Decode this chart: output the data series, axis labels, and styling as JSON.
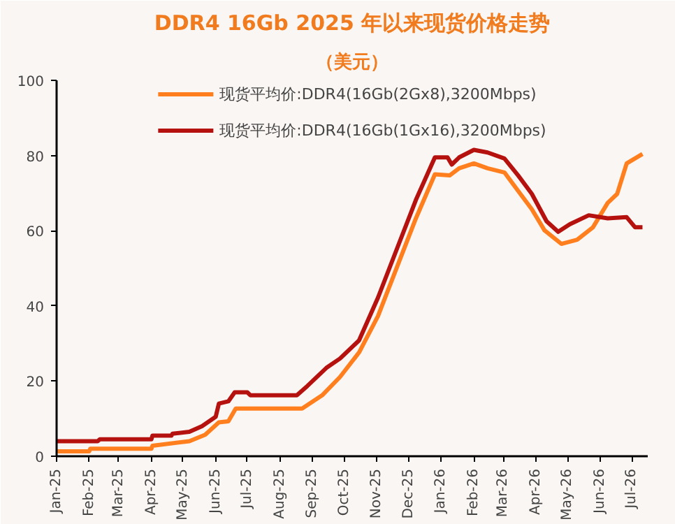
{
  "chart_data": {
    "type": "line",
    "title": "DDR4 16Gb 2025 年以来现货价格走势",
    "subtitle": "（美元）",
    "xlim": [
      "2025-01-01",
      "2026-07-16"
    ],
    "ylim": [
      0,
      100
    ],
    "yticks": [
      0,
      20,
      40,
      60,
      80,
      100
    ],
    "xticks": [
      {
        "value": "2025-01",
        "label": "Jan-25"
      },
      {
        "value": "2025-02",
        "label": "Feb-25"
      },
      {
        "value": "2025-03",
        "label": "Mar-25"
      },
      {
        "value": "2025-04",
        "label": "Apr-25"
      },
      {
        "value": "2025-05",
        "label": "May-25"
      },
      {
        "value": "2025-06",
        "label": "Jun-25"
      },
      {
        "value": "2025-07",
        "label": "Jul-25"
      },
      {
        "value": "2025-08",
        "label": "Aug-25"
      },
      {
        "value": "2025-09",
        "label": "Sep-25"
      },
      {
        "value": "2025-10",
        "label": "Oct-25"
      },
      {
        "value": "2025-11",
        "label": "Nov-25"
      },
      {
        "value": "2025-12",
        "label": "Dec-25"
      },
      {
        "value": "2026-01",
        "label": "Jan-26"
      },
      {
        "value": "2026-02",
        "label": "Feb-26"
      },
      {
        "value": "2026-03",
        "label": "Mar-26"
      },
      {
        "value": "2026-04",
        "label": "Apr-26"
      },
      {
        "value": "2026-05",
        "label": "May-26"
      },
      {
        "value": "2026-06",
        "label": "Jun-26"
      },
      {
        "value": "2026-07",
        "label": "Jul-26"
      }
    ],
    "grid": false,
    "legend": "top",
    "marker": "none",
    "line_style": "solid",
    "series": [
      {
        "name": "现货平均价:DDR4(16Gb(2Gx8),3200Mbps)",
        "color": "#ff7f1e",
        "x": [
          "2025-01-01",
          "2025-02-01",
          "2025-02-02",
          "2025-04-01",
          "2025-04-02",
          "2025-05-07",
          "2025-05-22",
          "2025-06-04",
          "2025-06-13",
          "2025-06-20",
          "2025-08-22",
          "2025-09-10",
          "2025-09-27",
          "2025-10-15",
          "2025-11-02",
          "2025-11-20",
          "2025-12-08",
          "2025-12-26",
          "2026-01-09",
          "2026-01-18",
          "2026-02-01",
          "2026-02-14",
          "2026-03-02",
          "2026-03-15",
          "2026-03-28",
          "2026-04-09",
          "2026-04-25",
          "2026-05-10",
          "2026-05-25",
          "2026-06-08",
          "2026-06-17",
          "2026-06-26",
          "2026-07-11"
        ],
        "values": [
          1.3,
          1.3,
          2,
          2,
          2.8,
          4,
          5.7,
          9,
          9.3,
          12.7,
          12.7,
          16.2,
          21.1,
          27.6,
          37.3,
          50.3,
          63.3,
          75.0,
          74.7,
          76.6,
          77.9,
          76.6,
          75.5,
          70.6,
          65.7,
          60.1,
          56.5,
          57.6,
          60.9,
          67.4,
          69.8,
          77.9,
          80.4
        ]
      },
      {
        "name": "现货平均价:DDR4(16Gb(1Gx16),3200Mbps)",
        "color": "#b5120f",
        "x": [
          "2025-01-01",
          "2025-02-09",
          "2025-02-11",
          "2025-04-01",
          "2025-04-02",
          "2025-04-20",
          "2025-04-21",
          "2025-05-07",
          "2025-05-19",
          "2025-06-01",
          "2025-06-04",
          "2025-06-13",
          "2025-06-19",
          "2025-07-01",
          "2025-07-04",
          "2025-08-17",
          "2025-08-27",
          "2025-09-14",
          "2025-09-27",
          "2025-10-15",
          "2025-11-02",
          "2025-11-20",
          "2025-12-08",
          "2025-12-26",
          "2026-01-07",
          "2026-01-11",
          "2026-01-18",
          "2026-02-01",
          "2026-02-14",
          "2026-03-02",
          "2026-03-15",
          "2026-03-28",
          "2026-04-11",
          "2026-04-22",
          "2026-05-03",
          "2026-05-21",
          "2026-06-08",
          "2026-06-26",
          "2026-07-04",
          "2026-07-11"
        ],
        "values": [
          4.0,
          4.0,
          4.5,
          4.5,
          5.5,
          5.5,
          6,
          6.5,
          8,
          10.5,
          14,
          14.6,
          17,
          17,
          16.2,
          16.2,
          18.7,
          23.5,
          26,
          30.8,
          42.2,
          55.2,
          68.2,
          79.5,
          79.5,
          77.6,
          79.5,
          81.5,
          80.8,
          79.2,
          74.7,
          69.8,
          62.5,
          59.7,
          61.7,
          64.1,
          63.3,
          63.6,
          60.9,
          60.9
        ]
      }
    ]
  }
}
